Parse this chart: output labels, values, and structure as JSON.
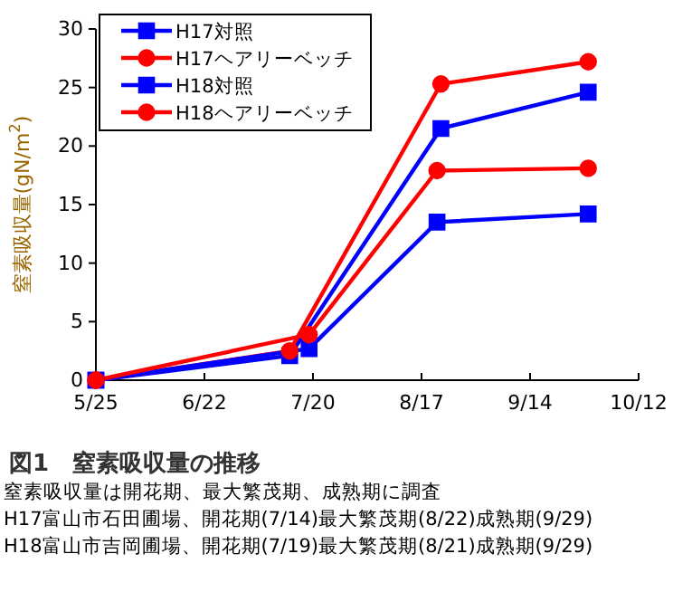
{
  "chart_data": {
    "type": "line",
    "title": "図1　窒素吸収量の推移",
    "ylabel": "窒素吸収量(gN/m$^{2}$)",
    "annotations": [
      "窒素吸収量は開花期、最大繁茂期、成熟期に調査",
      "H17富山市石田圃場、開花期(7/14)最大繁茂期(8/22)成熟期(9/29)",
      "H18富山市吉岡圃場、開花期(7/19)最大繁茂期(8/21)成熟期(9/29)"
    ],
    "series": [
      {
        "name": "H17対照",
        "color": "#0000ff",
        "marker": "square",
        "x": [
          "--05-25",
          "--07-14",
          "--08-22",
          "--09-29"
        ],
        "values": [
          0,
          2.1,
          21.5,
          24.6
        ]
      },
      {
        "name": "H17ヘアリーベッチ",
        "color": "#ff0000",
        "marker": "circle",
        "x": [
          "--05-25",
          "--07-14",
          "--08-22",
          "--09-29"
        ],
        "values": [
          0,
          2.5,
          25.3,
          27.2
        ]
      },
      {
        "name": "H18対照",
        "color": "#0000ff",
        "marker": "square",
        "x": [
          "--05-25",
          "--07-19",
          "--08-21",
          "--09-29"
        ],
        "values": [
          0,
          2.7,
          13.5,
          14.2
        ]
      },
      {
        "name": "H18ヘアリーベッチ",
        "color": "#ff0000",
        "marker": "circle",
        "x": [
          "--05-25",
          "--07-19",
          "--08-21",
          "--09-29"
        ],
        "values": [
          0,
          3.9,
          17.9,
          18.1
        ]
      }
    ],
    "xlim": [
      "--05-25",
      "--10-12"
    ],
    "xticks": [
      {
        "value": "--05-25",
        "label": "5/25"
      },
      {
        "value": "--06-22",
        "label": "6/22"
      },
      {
        "value": "--07-20",
        "label": "7/20"
      },
      {
        "value": "--08-17",
        "label": "8/17"
      },
      {
        "value": "--09-14",
        "label": "9/14"
      },
      {
        "value": "--10-12",
        "label": "10/12"
      }
    ],
    "ylim": [
      0,
      30
    ],
    "yticks": [
      0,
      5,
      10,
      15,
      20,
      25,
      30
    ],
    "grid": false,
    "legend": "top left",
    "line_style": "solid"
  }
}
